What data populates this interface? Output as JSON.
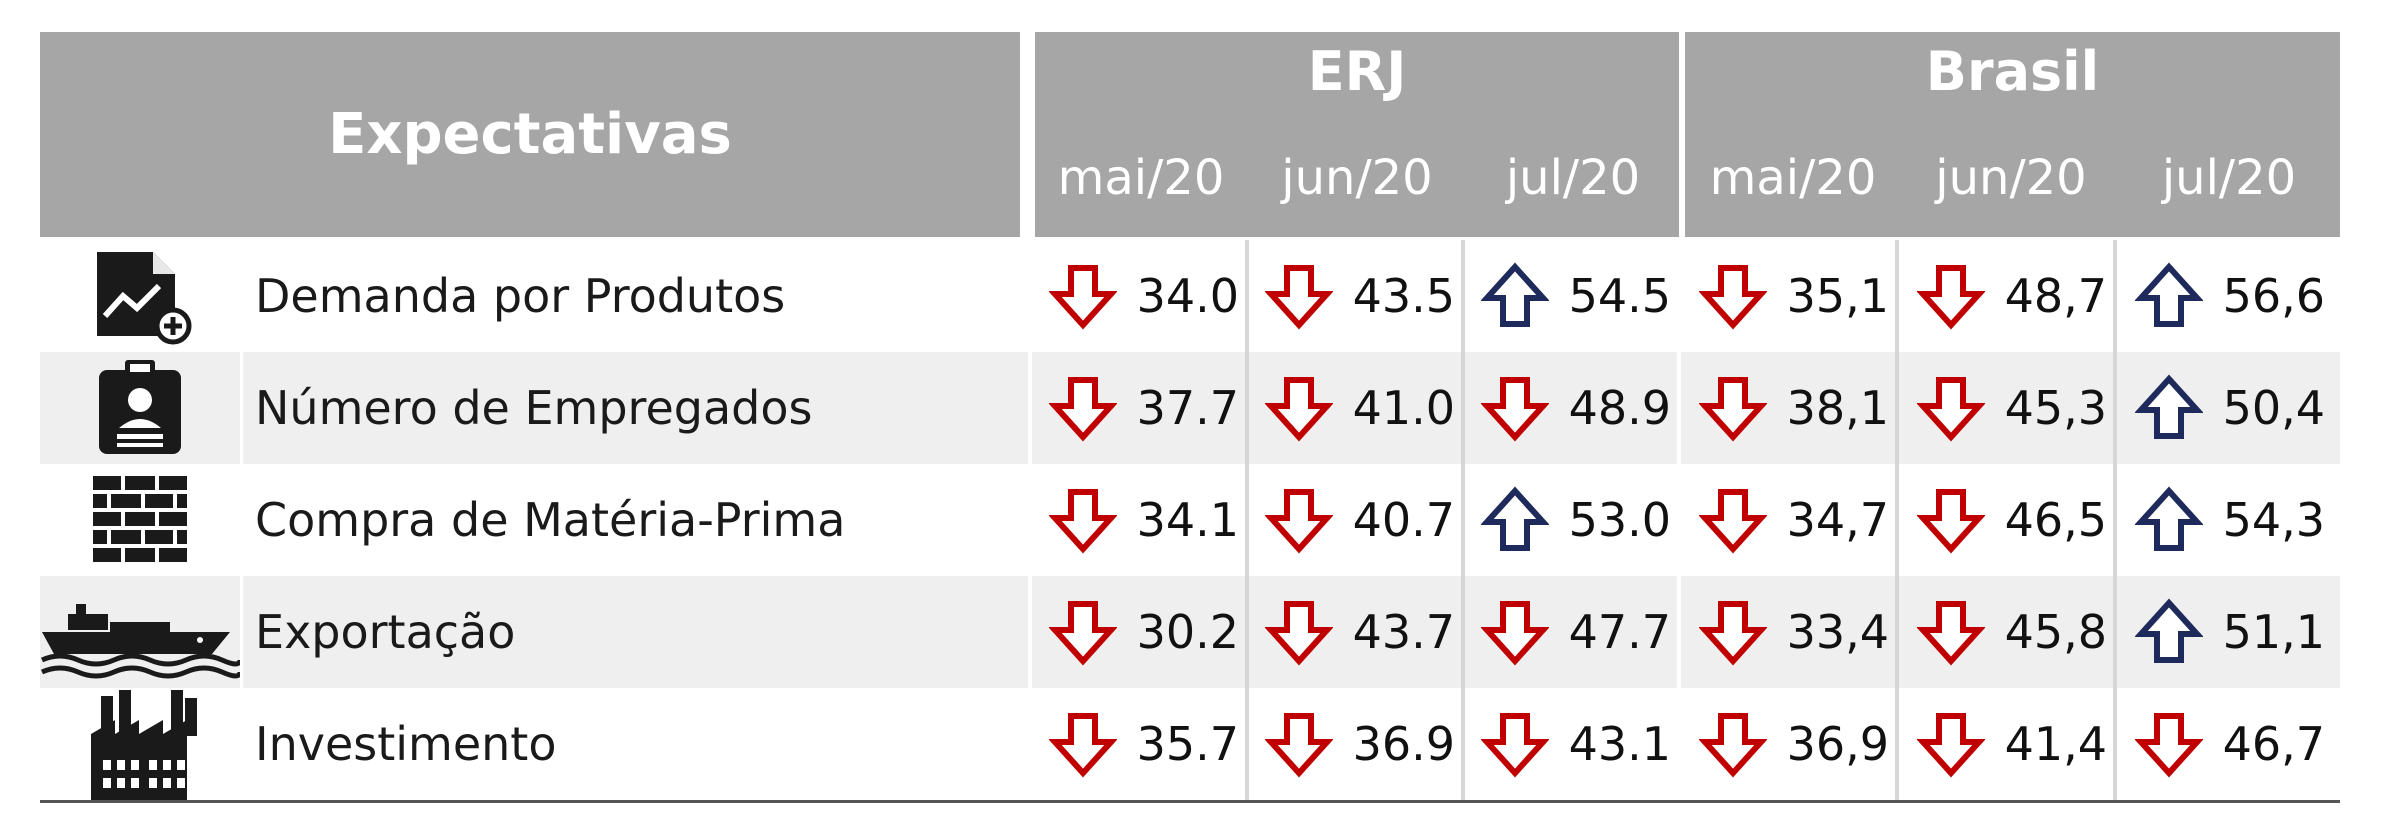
{
  "table": {
    "header_title": "Expectativas",
    "groups": [
      {
        "name": "ERJ",
        "periods": [
          "mai/20",
          "jun/20",
          "jul/20"
        ]
      },
      {
        "name": "Brasil",
        "periods": [
          "mai/20",
          "jun/20",
          "jul/20"
        ]
      }
    ],
    "rows": [
      {
        "label": "Demanda por Produtos",
        "icon": "document-chart-plus-icon",
        "erj": [
          "34.0",
          "43.5",
          "54.5"
        ],
        "brasil": [
          "35,1",
          "48,7",
          "56,6"
        ],
        "erj_dir": [
          "down",
          "down",
          "up"
        ],
        "brasil_dir": [
          "down",
          "down",
          "up"
        ]
      },
      {
        "label": "Número de Empregados",
        "icon": "employee-badge-icon",
        "erj": [
          "37.7",
          "41.0",
          "48.9"
        ],
        "brasil": [
          "38,1",
          "45,3",
          "50,4"
        ],
        "erj_dir": [
          "down",
          "down",
          "down"
        ],
        "brasil_dir": [
          "down",
          "down",
          "up"
        ]
      },
      {
        "label": "Compra de Matéria-Prima",
        "icon": "brick-wall-icon",
        "erj": [
          "34.1",
          "40.7",
          "53.0"
        ],
        "brasil": [
          "34,7",
          "46,5",
          "54,3"
        ],
        "erj_dir": [
          "down",
          "down",
          "up"
        ],
        "brasil_dir": [
          "down",
          "down",
          "up"
        ]
      },
      {
        "label": "Exportação",
        "icon": "cargo-ship-icon",
        "erj": [
          "30.2",
          "43.7",
          "47.7"
        ],
        "brasil": [
          "33,4",
          "45,8",
          "51,1"
        ],
        "erj_dir": [
          "down",
          "down",
          "down"
        ],
        "brasil_dir": [
          "down",
          "down",
          "up"
        ]
      },
      {
        "label": "Investimento",
        "icon": "factory-icon",
        "erj": [
          "35.7",
          "36.9",
          "43.1"
        ],
        "brasil": [
          "36,9",
          "41,4",
          "46,7"
        ],
        "erj_dir": [
          "down",
          "down",
          "down"
        ],
        "brasil_dir": [
          "down",
          "down",
          "down"
        ]
      }
    ]
  },
  "chart_data": {
    "type": "table",
    "title": "Expectativas",
    "columns": [
      "ERJ mai/20",
      "ERJ jun/20",
      "ERJ jul/20",
      "Brasil mai/20",
      "Brasil jun/20",
      "Brasil jul/20"
    ],
    "rows": [
      "Demanda por Produtos",
      "Número de Empregados",
      "Compra de Matéria-Prima",
      "Exportação",
      "Investimento"
    ],
    "values": [
      [
        34.0,
        43.5,
        54.5,
        35.1,
        48.7,
        56.6
      ],
      [
        37.7,
        41.0,
        48.9,
        38.1,
        45.3,
        50.4
      ],
      [
        34.1,
        40.7,
        53.0,
        34.7,
        46.5,
        54.3
      ],
      [
        30.2,
        43.7,
        47.7,
        33.4,
        45.8,
        51.1
      ],
      [
        35.7,
        36.9,
        43.1,
        36.9,
        41.4,
        46.7
      ]
    ]
  },
  "colors": {
    "header_bg": "#a6a6a6",
    "header_text": "#ffffff",
    "down_arrow": "#c00000",
    "up_arrow": "#1f2a5c",
    "row_shade": "#efefef"
  }
}
